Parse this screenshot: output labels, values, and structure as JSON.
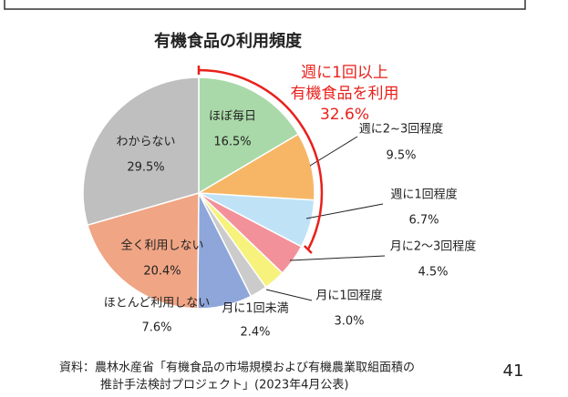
{
  "chart_data": {
    "type": "pie",
    "title": "有機食品の利用頻度",
    "categories": [
      "ほぼ毎日",
      "週に2~3回程度",
      "週に1回程度",
      "月に2～3回程度",
      "月に1回程度",
      "月に1回未満",
      "ほとんど利用しない",
      "全く利用しない",
      "わからない"
    ],
    "values": [
      16.5,
      9.5,
      6.7,
      4.5,
      3.0,
      2.4,
      7.6,
      20.4,
      29.5
    ],
    "value_labels": [
      "16.5%",
      "9.5%",
      "6.7%",
      "4.5%",
      "3.0%",
      "2.4%",
      "7.6%",
      "20.4%",
      "29.5%"
    ],
    "colors": [
      "#a9d9a8",
      "#f7b666",
      "#bfe2f6",
      "#f3919b",
      "#f6f27c",
      "#cbcbcb",
      "#8ea6d9",
      "#f0a585",
      "#bfbfbf"
    ],
    "annotation": {
      "text": [
        "週に1回以上",
        "有機食品を利用"
      ],
      "value": 32.6,
      "value_label": "32.6%",
      "color": "#e8211c"
    }
  },
  "source": [
    "資料：農林水産省「有機食品の市場規模および有機農業取組面積の",
    "推計手法検討プロジェクト」(2023年4月公表)"
  ],
  "page_number": "41"
}
